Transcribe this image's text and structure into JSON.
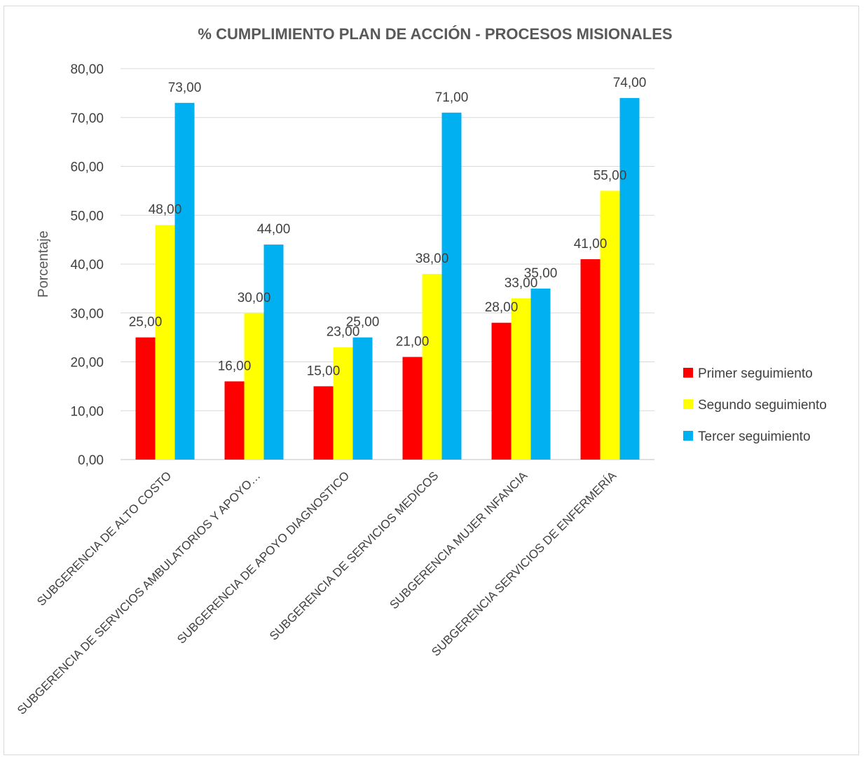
{
  "chart_data": {
    "type": "bar",
    "title": "% CUMPLIMIENTO PLAN DE ACCIÓN - PROCESOS MISIONALES",
    "ylabel": "Porcentaje",
    "xlabel": "",
    "ylim": [
      0,
      80
    ],
    "ytick_step": 10,
    "y_tick_labels": [
      "0,00",
      "10,00",
      "20,00",
      "30,00",
      "40,00",
      "50,00",
      "60,00",
      "70,00",
      "80,00"
    ],
    "grid": true,
    "legend_position": "right",
    "categories": [
      "SUBGERENCIA DE ALTO COSTO",
      "SUBGERENCIA DE SERVICIOS AMBULATORIOS Y APOYO…",
      "SUBGERENCIA DE APOYO DIAGNOSTICO",
      "SUBGERENCIA DE SERVICIOS MEDICOS",
      "SUBGERENCIA MUJER INFANCIA",
      "SUBGERENCIA SERVICIOS DE ENFERMERÍA"
    ],
    "series": [
      {
        "name": "Primer seguimiento",
        "color": "#ff0000",
        "values": [
          25,
          16,
          15,
          21,
          28,
          41
        ],
        "labels": [
          "25,00",
          "16,00",
          "15,00",
          "21,00",
          "28,00",
          "41,00"
        ]
      },
      {
        "name": "Segundo seguimiento",
        "color": "#ffff00",
        "values": [
          48,
          30,
          23,
          38,
          33,
          55
        ],
        "labels": [
          "48,00",
          "30,00",
          "23,00",
          "38,00",
          "33,00",
          "55,00"
        ]
      },
      {
        "name": "Tercer seguimiento",
        "color": "#00b0f0",
        "values": [
          73,
          44,
          25,
          71,
          35,
          74
        ],
        "labels": [
          "73,00",
          "44,00",
          "25,00",
          "71,00",
          "35,00",
          "74,00"
        ]
      }
    ]
  }
}
